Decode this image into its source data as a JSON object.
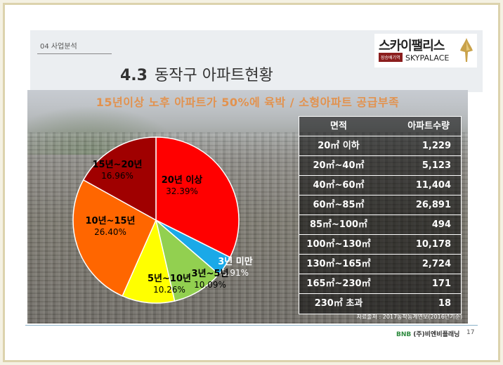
{
  "header": {
    "section": "04 사업분석",
    "title_number": "4.3",
    "title_text": "동작구 아파트현황"
  },
  "logo": {
    "name_ko": "스카이팰리스",
    "tagline": "장승배기역",
    "name_en": "SKYPALACE"
  },
  "banner": "15년이상 노후 아파트가 50%에 육박 / 소형아파트 공급부족",
  "chart_data": {
    "type": "pie",
    "slices": [
      {
        "label": "20년 이상",
        "value": 32.39,
        "value_label": "32.39%",
        "color": "#ff0000"
      },
      {
        "label": "3년 미만",
        "value": 3.91,
        "value_label": "3.91%",
        "color": "#1aa9e8"
      },
      {
        "label": "3년~5년",
        "value": 10.09,
        "value_label": "10.09%",
        "color": "#92d050"
      },
      {
        "label": "5년~10년",
        "value": 10.26,
        "value_label": "10.26%",
        "color": "#ffff00"
      },
      {
        "label": "10년~15년",
        "value": 26.4,
        "value_label": "26.40%",
        "color": "#ff6600"
      },
      {
        "label": "15년~20년",
        "value": 16.96,
        "value_label": "16.96%",
        "color": "#a00000"
      }
    ]
  },
  "table": {
    "headers": [
      "면적",
      "아파트수량"
    ],
    "rows": [
      {
        "area": "20㎡ 이하",
        "count": "1,229"
      },
      {
        "area": "20㎡~40㎡",
        "count": "5,123"
      },
      {
        "area": "40㎡~60㎡",
        "count": "11,404"
      },
      {
        "area": "60㎡~85㎡",
        "count": "26,891"
      },
      {
        "area": "85㎡~100㎡",
        "count": "494"
      },
      {
        "area": "100㎡~130㎡",
        "count": "10,178"
      },
      {
        "area": "130㎡~165㎡",
        "count": "2,724"
      },
      {
        "area": "165㎡~230㎡",
        "count": "171"
      },
      {
        "area": "230㎡ 초과",
        "count": "18"
      }
    ],
    "source": "자료출처 : 2017동작동계연보(2016년기준)"
  },
  "footer": {
    "brand_mark": "BNB",
    "brand": "(주)비엔비플래닝",
    "page": "17"
  }
}
